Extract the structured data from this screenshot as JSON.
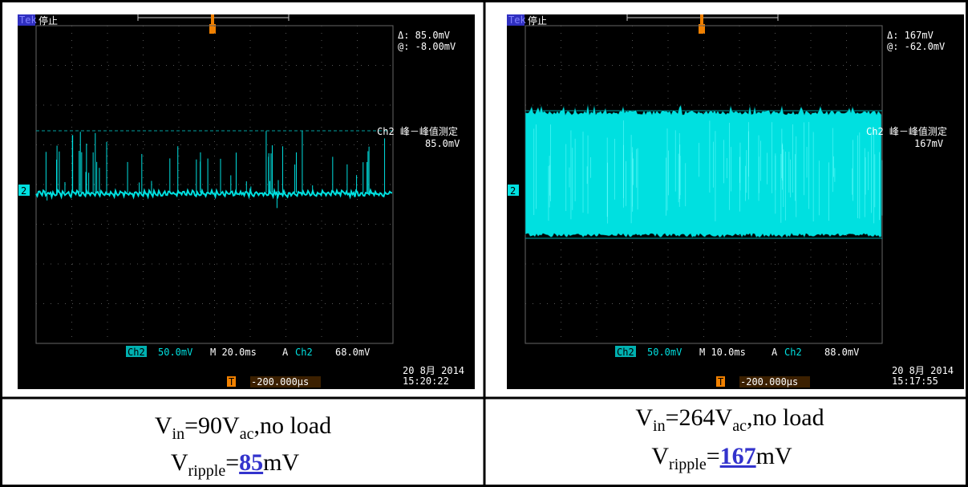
{
  "panels": [
    {
      "scope": {
        "brand": "Tek",
        "state": "停止",
        "delta": "Δ:  85.0mV",
        "at": "@: -8.00mV",
        "measure_name": "Ch2 峰－峰值测定",
        "measure_value": "85.0mV",
        "channel_marker": "2",
        "ch_label": "Ch2",
        "scale": "50.0mV",
        "timebase": "M 20.0ms",
        "trigger_mode": "A",
        "trigger_ch": "Ch2",
        "trigger_level": "68.0mV",
        "date": "20 8月 2014",
        "time": "15:20:22",
        "trigger_marker": "T",
        "position": "-200.000μs"
      },
      "caption": {
        "line1": {
          "v": "V",
          "v_sub": "in",
          "mid": "=90V",
          "mid_sub": "ac",
          "tail": ",no load"
        },
        "line2": {
          "v": "V",
          "v_sub": "ripple",
          "eq": "=",
          "value": "85",
          "unit": "mV"
        }
      }
    },
    {
      "scope": {
        "brand": "Tek",
        "state": "停止",
        "delta": "Δ:   167mV",
        "at": "@: -62.0mV",
        "measure_name": "Ch2 峰－峰值测定",
        "measure_value": "167mV",
        "channel_marker": "2",
        "ch_label": "Ch2",
        "scale": "50.0mV",
        "timebase": "M 10.0ms",
        "trigger_mode": "A",
        "trigger_ch": "Ch2",
        "trigger_level": "88.0mV",
        "date": "20 8月 2014",
        "time": "15:17:55",
        "trigger_marker": "T",
        "position": "-200.000μs"
      },
      "caption": {
        "line1": {
          "v": "V",
          "v_sub": "in",
          "mid": "=264V",
          "mid_sub": "ac",
          "tail": ",no load"
        },
        "line2": {
          "v": "V",
          "v_sub": "ripple",
          "eq": "=",
          "value": "167",
          "unit": "mV"
        }
      }
    }
  ]
}
